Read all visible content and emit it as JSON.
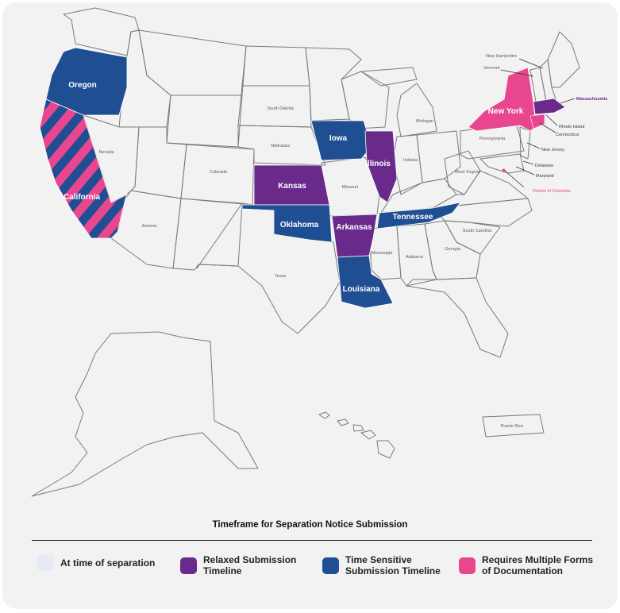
{
  "colors": {
    "at_time": "#e4ebf3",
    "relaxed": "#6a2a8c",
    "time_sensitive": "#1f4e92",
    "multiple_forms": "#e8478f",
    "border": "#7a7a7a"
  },
  "map_labels": {
    "oregon": "Oregon",
    "california": "California",
    "nevada": "Nevada",
    "arizona": "Arizona",
    "colorado": "Colorado",
    "south_dakota": "South Dakota",
    "nebraska": "Nebraska",
    "kansas": "Kansas",
    "oklahoma": "Oklahoma",
    "texas": "Texas",
    "iowa": "Iowa",
    "missouri": "Missouri",
    "arkansas": "Arkansas",
    "louisiana": "Louisiana",
    "illinois": "Illinois",
    "indiana": "Indiana",
    "michigan": "Michigan",
    "tennessee": "Tennessee",
    "mississippi": "Mississippi",
    "alabama": "Alabama",
    "georgia": "Georgia",
    "south_carolina": "South Carolina",
    "west_virginia": "West Virginia",
    "pennsylvania": "Pennsylvania",
    "new_york": "New York",
    "new_hampshire": "New Hampshire",
    "vermont": "Vermont",
    "massachusetts": "Massachusetts",
    "rhode_island": "Rhode Island",
    "connecticut": "Connecticut",
    "new_jersey": "New Jersey",
    "delaware": "Delaware",
    "maryland": "Maryland",
    "district_of_columbia": "District of Columbia",
    "puerto_rico": "Puerto Rico"
  },
  "legend": {
    "title": "Timeframe for Separation Notice Submission",
    "items": [
      {
        "label_line1": "At time of separation",
        "label_line2": "",
        "color_key": "at_time"
      },
      {
        "label_line1": "Relaxed Submission",
        "label_line2": "Timeline",
        "color_key": "relaxed"
      },
      {
        "label_line1": "Time Sensitive",
        "label_line2": "Submission Timeline",
        "color_key": "time_sensitive"
      },
      {
        "label_line1": "Requires Multiple Forms",
        "label_line2": "of Documentation",
        "color_key": "multiple_forms"
      }
    ]
  }
}
